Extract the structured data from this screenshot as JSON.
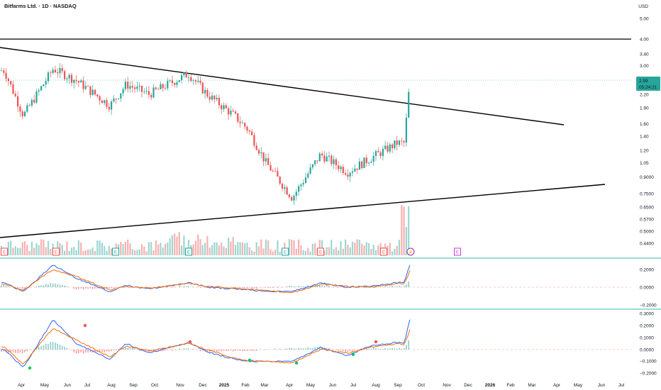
{
  "header": {
    "symbol_title": "Bitfarms Ltd. · 1D · NASDAQ",
    "currency": "USD"
  },
  "colors": {
    "up": "#26a69a",
    "down": "#ef5350",
    "trendline": "#000000",
    "price_badge": "#26a69a",
    "macd": "#2962ff",
    "signal": "#ff6d00",
    "pane_border": "#7ccfc7"
  },
  "price_badge": {
    "price": "2.59",
    "countdown": "05:24:21"
  },
  "chart_data": [
    {
      "type": "candlestick",
      "title": "",
      "scale": "log",
      "y_ticks": [
        "5.00",
        "4.00",
        "3.40",
        "3.00",
        "2.59",
        "2.20",
        "1.90",
        "1.60",
        "1.40",
        "1.20",
        "1.05",
        "0.9000",
        "0.7500",
        "0.6500",
        "0.5700",
        "0.5000",
        "0.4400"
      ],
      "x_ticks": [
        "Apr",
        "May",
        "Jun",
        "Jul",
        "Aug",
        "Sep",
        "Oct",
        "Nov",
        "Dec",
        "2025",
        "Feb",
        "Mar",
        "Apr",
        "May",
        "Jun",
        "Jul",
        "Aug",
        "Sep",
        "Oct",
        "Nov",
        "Dec",
        "2026",
        "Feb",
        "Mar",
        "Apr",
        "May",
        "Jun",
        "Jul"
      ],
      "close_path": [
        [
          "Apr",
          2.85
        ],
        [
          "May",
          1.75
        ],
        [
          "Jun",
          2.9
        ],
        [
          "Jul",
          2.55
        ],
        [
          "Aug",
          1.95
        ],
        [
          "Sep",
          2.45
        ],
        [
          "Oct",
          2.2
        ],
        [
          "Nov",
          2.75
        ],
        [
          "Dec",
          2.2
        ],
        [
          "2025",
          1.75
        ],
        [
          "Feb",
          1.5
        ],
        [
          "Mar",
          1.05
        ],
        [
          "Apr",
          0.72
        ],
        [
          "May",
          1.15
        ],
        [
          "Jun",
          0.95
        ],
        [
          "Jul",
          1.1
        ],
        [
          "Aug",
          1.3
        ],
        [
          "Sep",
          1.3
        ],
        [
          "Sep",
          2.59
        ]
      ],
      "horizontal_line": 4.0,
      "trendlines": [
        {
          "from": [
            "Mar 2024",
            3.7
          ],
          "to": [
            "Apr 2026",
            1.6
          ]
        },
        {
          "from": [
            "Mar 2024",
            0.47
          ],
          "to": [
            "Jun 2026",
            0.83
          ]
        }
      ],
      "volume": "bars along price pane bottom, spike in Sep 2025",
      "earnings_markers": [
        {
          "x": "Apr",
          "label": "E",
          "color": "#ef5350"
        },
        {
          "x": "May",
          "label": "E",
          "color": "#ef5350"
        },
        {
          "x": "Aug",
          "label": "E",
          "color": "#26a69a"
        },
        {
          "x": "Nov",
          "label": "E",
          "color": "#26a69a"
        },
        {
          "x": "Apr",
          "label": "E",
          "color": "#26a69a"
        },
        {
          "x": "May",
          "label": "E",
          "color": "#ef5350"
        },
        {
          "x": "Aug",
          "label": "E",
          "color": "#ef5350"
        },
        {
          "x": "Sep",
          "label": "⚡",
          "color": "#9c27b0"
        },
        {
          "x": "Nov",
          "label": "E",
          "color": "#c43fd6"
        }
      ]
    },
    {
      "type": "line",
      "title": "",
      "y_ticks": [
        "0.2000",
        "0.0000",
        "−0.2000"
      ],
      "series": [
        {
          "name": "",
          "values": [
            0.05,
            -0.05,
            0.25,
            0.1,
            -0.05,
            0.02,
            -0.02,
            0.05,
            0.0,
            -0.02,
            -0.03,
            -0.05,
            -0.05,
            0.05,
            0.0,
            0.01,
            0.05,
            0.05,
            0.28
          ]
        },
        {
          "name": "",
          "values": [
            0.03,
            -0.03,
            0.2,
            0.12,
            -0.03,
            0.01,
            -0.01,
            0.04,
            0.01,
            -0.01,
            -0.02,
            -0.04,
            -0.06,
            0.03,
            0.01,
            0.0,
            0.04,
            0.04,
            0.2
          ]
        }
      ]
    },
    {
      "type": "line",
      "title": "",
      "y_ticks": [
        "0.3000",
        "0.2000",
        "0.1000",
        "0.0000",
        "−0.1000",
        "−0.2000"
      ],
      "series": [
        {
          "name": "",
          "values": [
            0.0,
            -0.15,
            0.25,
            0.05,
            -0.08,
            0.05,
            -0.03,
            0.06,
            -0.02,
            -0.08,
            -0.1,
            -0.1,
            -0.1,
            0.02,
            -0.05,
            0.03,
            0.06,
            0.05,
            0.28
          ]
        },
        {
          "name": "",
          "values": [
            0.02,
            -0.12,
            0.18,
            0.08,
            -0.06,
            0.03,
            -0.01,
            0.05,
            0.0,
            -0.07,
            -0.09,
            -0.1,
            -0.11,
            0.0,
            -0.03,
            0.02,
            0.05,
            0.04,
            0.18
          ]
        }
      ]
    }
  ]
}
